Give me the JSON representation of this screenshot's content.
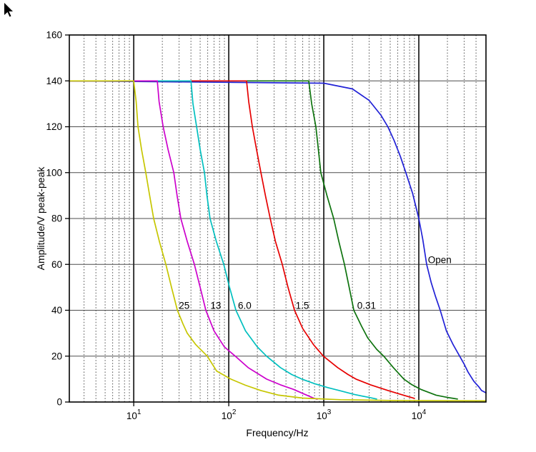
{
  "chart_data": {
    "type": "line",
    "title": "",
    "xlabel": "Frequency/Hz",
    "ylabel": "Amplitude/V peak-peak",
    "x_scale": "log",
    "x_range_hz": [
      2.1,
      50900
    ],
    "y_range": [
      0,
      160
    ],
    "grid": "on",
    "legend_position": "inline-labels",
    "y_ticks": [
      "0",
      "20",
      "40",
      "60",
      "80",
      "100",
      "120",
      "140",
      "160"
    ],
    "x_ticks": [
      {
        "base": "10",
        "exp": "1"
      },
      {
        "base": "10",
        "exp": "2"
      },
      {
        "base": "10",
        "exp": "3"
      },
      {
        "base": "10",
        "exp": "4"
      }
    ],
    "colors": {
      "frame": "#000000",
      "grid_major_h": "#4d4d4d",
      "grid_major_v": "#262626",
      "grid_minor": "#4d4d4d"
    },
    "series": [
      {
        "name": "25",
        "color": "#C6C600",
        "label": {
          "text": "25",
          "f": 34,
          "amp": 42
        },
        "points": [
          [
            2.1,
            140
          ],
          [
            10,
            140
          ],
          [
            10.6,
            131
          ],
          [
            11.1,
            120
          ],
          [
            12.1,
            110
          ],
          [
            13.4,
            100
          ],
          [
            14.7,
            90
          ],
          [
            16.2,
            80
          ],
          [
            18.6,
            70
          ],
          [
            21.8,
            60
          ],
          [
            25,
            50
          ],
          [
            28.8,
            40
          ],
          [
            33,
            34
          ],
          [
            36.6,
            30
          ],
          [
            45,
            25
          ],
          [
            59.5,
            20
          ],
          [
            74.5,
            13.5
          ],
          [
            105,
            10
          ],
          [
            150,
            7.3
          ],
          [
            218,
            5
          ],
          [
            335,
            3
          ],
          [
            600,
            1.7
          ],
          [
            1500,
            1
          ],
          [
            5000,
            0.7
          ],
          [
            50900,
            0.5
          ]
        ]
      },
      {
        "name": "13",
        "color": "#CC00CC",
        "label": {
          "text": "13",
          "f": 73,
          "amp": 42
        },
        "points": [
          [
            2.1,
            140
          ],
          [
            17.7,
            140
          ],
          [
            18.5,
            131
          ],
          [
            20.4,
            120
          ],
          [
            23,
            110
          ],
          [
            26.4,
            100
          ],
          [
            28.6,
            90
          ],
          [
            31.3,
            80
          ],
          [
            36.6,
            70
          ],
          [
            43.5,
            60
          ],
          [
            50,
            50
          ],
          [
            57.4,
            40
          ],
          [
            70,
            31
          ],
          [
            90,
            24
          ],
          [
            117,
            20
          ],
          [
            160,
            15
          ],
          [
            250,
            10
          ],
          [
            350,
            7.5
          ],
          [
            480,
            5.5
          ],
          [
            620,
            3.5
          ],
          [
            770,
            1.8
          ],
          [
            850,
            1.2
          ]
        ]
      },
      {
        "name": "6.0",
        "color": "#00BFBF",
        "label": {
          "text": "6.0",
          "f": 147,
          "amp": 42
        },
        "points": [
          [
            2.1,
            140
          ],
          [
            40,
            140
          ],
          [
            42,
            130
          ],
          [
            45.9,
            120
          ],
          [
            50,
            110
          ],
          [
            55.5,
            100
          ],
          [
            59,
            90
          ],
          [
            63.5,
            80
          ],
          [
            74,
            70
          ],
          [
            88.6,
            60
          ],
          [
            102,
            50
          ],
          [
            119,
            40
          ],
          [
            150,
            31
          ],
          [
            200,
            24
          ],
          [
            250,
            20
          ],
          [
            350,
            15
          ],
          [
            460,
            12
          ],
          [
            588,
            10
          ],
          [
            800,
            8
          ],
          [
            1100,
            6.3
          ],
          [
            1460,
            5
          ],
          [
            2100,
            3.3
          ],
          [
            3000,
            2
          ],
          [
            3600,
            1.3
          ]
        ]
      },
      {
        "name": "1.5",
        "color": "#E60000",
        "label": {
          "text": "1.5",
          "f": 594,
          "amp": 42
        },
        "points": [
          [
            2.1,
            140
          ],
          [
            154,
            140
          ],
          [
            162,
            131
          ],
          [
            177,
            120
          ],
          [
            196,
            110
          ],
          [
            218,
            100
          ],
          [
            243,
            90
          ],
          [
            273,
            80
          ],
          [
            310,
            70
          ],
          [
            366,
            60
          ],
          [
            420,
            50
          ],
          [
            492,
            40
          ],
          [
            600,
            32
          ],
          [
            780,
            25
          ],
          [
            990,
            20
          ],
          [
            1400,
            15
          ],
          [
            1800,
            12
          ],
          [
            2180,
            10
          ],
          [
            3100,
            7.5
          ],
          [
            4750,
            5
          ],
          [
            6500,
            3.3
          ],
          [
            9000,
            1.6
          ]
        ]
      },
      {
        "name": "0.31",
        "color": "#0E730E",
        "label": {
          "text": "0.31",
          "f": 2820,
          "amp": 42
        },
        "points": [
          [
            2.1,
            140
          ],
          [
            695,
            140
          ],
          [
            745,
            130
          ],
          [
            826,
            120
          ],
          [
            878,
            110
          ],
          [
            930,
            100
          ],
          [
            1080,
            90
          ],
          [
            1270,
            80
          ],
          [
            1440,
            70
          ],
          [
            1652,
            60
          ],
          [
            1850,
            50
          ],
          [
            2070,
            40
          ],
          [
            2500,
            33
          ],
          [
            2900,
            28
          ],
          [
            3600,
            23
          ],
          [
            4280,
            20
          ],
          [
            5400,
            15
          ],
          [
            6960,
            10
          ],
          [
            8500,
            7.5
          ],
          [
            10500,
            5.5
          ],
          [
            15200,
            3
          ],
          [
            20000,
            2
          ],
          [
            25500,
            1.3
          ]
        ]
      },
      {
        "name": "Open",
        "color": "#2121D6",
        "label": {
          "text": "Open",
          "f": 16600,
          "amp": 62
        },
        "points": [
          [
            2.1,
            140
          ],
          [
            1000,
            139
          ],
          [
            2000,
            136.5
          ],
          [
            3000,
            131.5
          ],
          [
            4000,
            125
          ],
          [
            4720,
            120
          ],
          [
            5500,
            114
          ],
          [
            6400,
            107
          ],
          [
            7310,
            100
          ],
          [
            8600,
            91
          ],
          [
            10000,
            80
          ],
          [
            11000,
            71
          ],
          [
            12100,
            60
          ],
          [
            13500,
            52
          ],
          [
            15000,
            46
          ],
          [
            16800,
            40
          ],
          [
            19500,
            31
          ],
          [
            23000,
            25
          ],
          [
            26900,
            20
          ],
          [
            30000,
            16.5
          ],
          [
            33000,
            13
          ],
          [
            38000,
            9
          ],
          [
            43000,
            6.5
          ],
          [
            45700,
            5
          ],
          [
            50900,
            4
          ]
        ]
      }
    ]
  }
}
